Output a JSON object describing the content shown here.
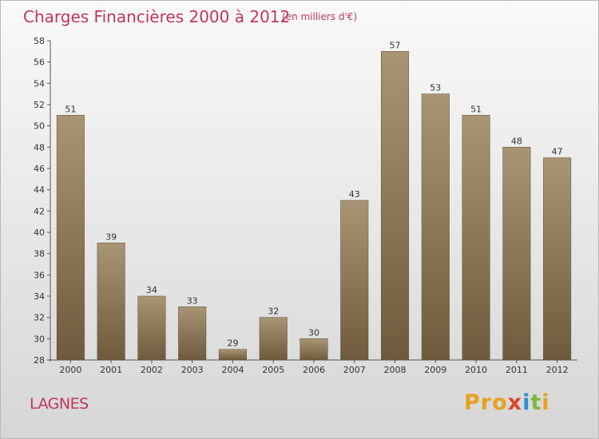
{
  "header": {
    "title": "Charges Financières 2000 à 2012",
    "unit_note": "(en milliers d'€)"
  },
  "footer": {
    "commune": "LAGNES",
    "logo_text": "Proxiti"
  },
  "colors": {
    "title": "#c0375a",
    "bar_top": "#a89574",
    "bar_bottom": "#6e5b3d",
    "axis": "#555555"
  },
  "chart_data": {
    "type": "bar",
    "title": "Charges Financières 2000 à 2012",
    "subtitle": "(en milliers d'€)",
    "xlabel": "",
    "ylabel": "",
    "categories": [
      "2000",
      "2001",
      "2002",
      "2003",
      "2004",
      "2005",
      "2006",
      "2007",
      "2008",
      "2009",
      "2010",
      "2011",
      "2012"
    ],
    "values": [
      51,
      39,
      34,
      33,
      29,
      32,
      30,
      43,
      57,
      53,
      51,
      48,
      47
    ],
    "ylim": [
      28,
      58
    ],
    "yticks": [
      28,
      30,
      32,
      34,
      36,
      38,
      40,
      42,
      44,
      46,
      48,
      50,
      52,
      54,
      56,
      58
    ],
    "data_labels": true,
    "grid": false,
    "legend": "none"
  }
}
